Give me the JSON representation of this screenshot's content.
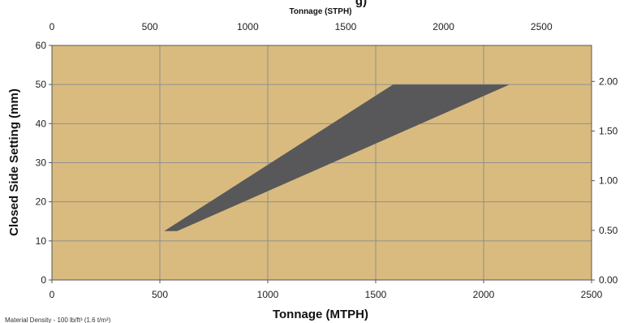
{
  "chart_data": {
    "type": "area",
    "title_fragment": "g)",
    "xlabel": "Tonnage (MTPH)",
    "x2label": "Tonnage  (STPH)",
    "ylabel": "Closed Side Setting (mm)",
    "footnote": "Material Density - 100 lb/ft³ (1.6 t/m³)",
    "xlim": [
      0,
      2500
    ],
    "ylim": [
      0,
      60
    ],
    "x_ticks": [
      0,
      500,
      1000,
      1500,
      2000,
      2500
    ],
    "y_ticks": [
      0,
      10,
      20,
      30,
      40,
      50,
      60
    ],
    "x2_ticks": [
      0,
      500,
      1000,
      1500,
      2000,
      2500
    ],
    "x2_ticklabels": [
      "0",
      "500",
      "1000",
      "1500",
      "2000",
      "2500"
    ],
    "x2_per_x": 1.1023,
    "y2_ticks": [
      0,
      0.5,
      1.0,
      1.5,
      2.0
    ],
    "y2_ticklabels": [
      "0.00",
      "0.50",
      "1.00",
      "1.50",
      "2.00"
    ],
    "y2_per_y": 0.03937,
    "grid": true,
    "series": [
      {
        "points": [
          {
            "x": 520,
            "y": 12.5
          },
          {
            "x": 1580,
            "y": 50
          },
          {
            "x": 2120,
            "y": 50
          },
          {
            "x": 580,
            "y": 12.5
          }
        ]
      }
    ],
    "colors": {
      "plot_bg": "#d9bb7f",
      "band": "#58585a",
      "grid": "#8f8f8f",
      "axis": "#555555"
    }
  }
}
